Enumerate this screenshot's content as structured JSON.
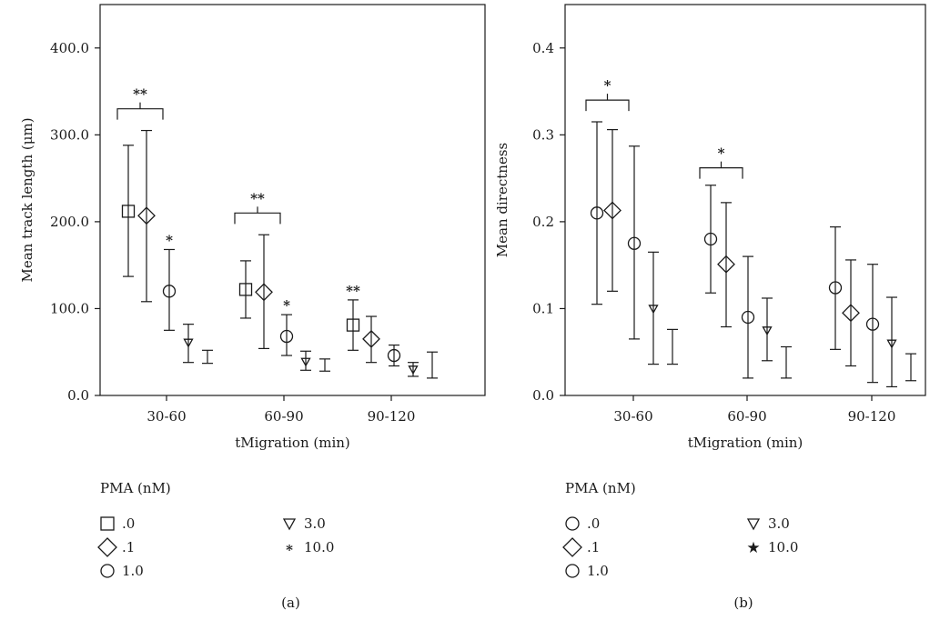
{
  "chart_data": [
    {
      "type": "scatter",
      "panel_label": "(a)",
      "xlabel": "tMigration (min)",
      "ylabel": "Mean track length (μm)",
      "ylim": [
        0,
        450
      ],
      "y_ticks": [
        0,
        100,
        200,
        300,
        400
      ],
      "y_tick_labels": [
        "0.0",
        "100.0",
        "200.0",
        "300.0",
        "400.0"
      ],
      "categories": [
        "30-60",
        "60-90",
        "90-120"
      ],
      "legend_title": "PMA (nM)",
      "series": [
        {
          "name": ".0",
          "marker": "square",
          "values": [
            212,
            122,
            81
          ],
          "low": [
            137,
            89,
            52
          ],
          "high": [
            288,
            155,
            110
          ]
        },
        {
          "name": ".1",
          "marker": "diamond",
          "values": [
            207,
            119,
            65
          ],
          "low": [
            108,
            54,
            38
          ],
          "high": [
            305,
            185,
            91
          ]
        },
        {
          "name": "1.0",
          "marker": "circle",
          "values": [
            120,
            68,
            46
          ],
          "low": [
            75,
            46,
            34
          ],
          "high": [
            168,
            93,
            58
          ]
        },
        {
          "name": "3.0",
          "marker": "triangle",
          "values": [
            61,
            39,
            30
          ],
          "low": [
            38,
            29,
            22
          ],
          "high": [
            82,
            51,
            38
          ]
        },
        {
          "name": "10.0",
          "marker": "star",
          "values": [
            null,
            null,
            null
          ],
          "low": [
            37,
            28,
            20
          ],
          "high": [
            52,
            42,
            50
          ]
        }
      ],
      "brackets": [
        {
          "category": 0,
          "from_series": 0,
          "to_series": 1,
          "label": "**",
          "at": 330
        },
        {
          "category": 1,
          "from_series": 0,
          "to_series": 1,
          "label": "**",
          "at": 210
        }
      ],
      "point_annotations": [
        {
          "category": 0,
          "series": 2,
          "label": "*",
          "at": 168
        },
        {
          "category": 1,
          "series": 2,
          "label": "*",
          "at": 93
        },
        {
          "category": 2,
          "series": 0,
          "label": "**",
          "at": 110
        }
      ]
    },
    {
      "type": "scatter",
      "panel_label": "(b)",
      "xlabel": "tMigration (min)",
      "ylabel": "Mean directness",
      "ylim": [
        0,
        0.45
      ],
      "y_ticks": [
        0,
        0.1,
        0.2,
        0.3,
        0.4
      ],
      "y_tick_labels": [
        "0.0",
        "0.1",
        "0.2",
        "0.3",
        "0.4"
      ],
      "categories": [
        "30-60",
        "60-90",
        "90-120"
      ],
      "legend_title": "PMA (nM)",
      "series": [
        {
          "name": ".0",
          "marker": "circle",
          "values": [
            0.21,
            0.18,
            0.124
          ],
          "low": [
            0.105,
            0.118,
            0.053
          ],
          "high": [
            0.315,
            0.242,
            0.194
          ]
        },
        {
          "name": ".1",
          "marker": "diamond",
          "values": [
            0.213,
            0.151,
            0.095
          ],
          "low": [
            0.12,
            0.079,
            0.034
          ],
          "high": [
            0.306,
            0.222,
            0.156
          ]
        },
        {
          "name": "1.0",
          "marker": "circle",
          "values": [
            0.175,
            0.09,
            0.082
          ],
          "low": [
            0.065,
            0.02,
            0.015
          ],
          "high": [
            0.287,
            0.16,
            0.151
          ]
        },
        {
          "name": "3.0",
          "marker": "triangle",
          "values": [
            0.1,
            0.075,
            0.06
          ],
          "low": [
            0.036,
            0.04,
            0.01
          ],
          "high": [
            0.165,
            0.112,
            0.113
          ]
        },
        {
          "name": "10.0",
          "marker": "star",
          "values": [
            null,
            null,
            null
          ],
          "low": [
            0.036,
            0.02,
            0.017
          ],
          "high": [
            0.076,
            0.056,
            0.048
          ]
        }
      ],
      "brackets": [
        {
          "category": 0,
          "from_series": 0,
          "to_series": 1,
          "label": "*",
          "at": 0.34
        },
        {
          "category": 1,
          "from_series": 0,
          "to_series": 1,
          "label": "*",
          "at": 0.262
        }
      ],
      "point_annotations": []
    }
  ]
}
